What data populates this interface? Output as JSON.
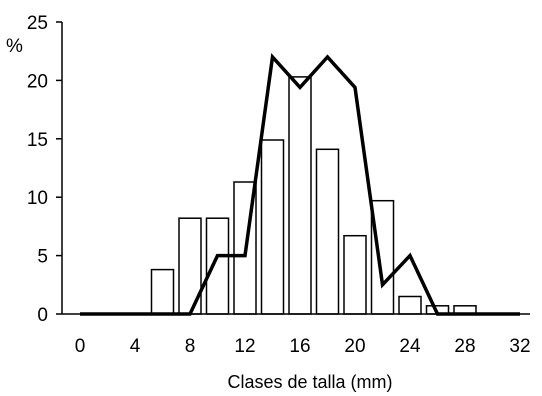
{
  "chart_data": {
    "type": "bar",
    "xlabel": "Clases de talla (mm)",
    "ylabel": "%",
    "xlim": [
      0,
      32
    ],
    "ylim": [
      0,
      25
    ],
    "x_ticks": [
      0,
      4,
      8,
      12,
      16,
      20,
      24,
      28,
      32
    ],
    "y_ticks": [
      0,
      5,
      10,
      15,
      20,
      25
    ],
    "grid": false,
    "legend": "none",
    "bar_width": 1.6,
    "series": [
      {
        "type": "bar",
        "x": [
          6,
          8,
          10,
          12,
          14,
          16,
          18,
          20,
          22,
          24,
          26,
          28
        ],
        "values": [
          3.8,
          8.2,
          8.2,
          11.3,
          14.9,
          20.3,
          14.1,
          6.7,
          9.7,
          1.5,
          0.7,
          0.7
        ],
        "fill": "#ffffff",
        "stroke": "#000000"
      },
      {
        "type": "line",
        "x": [
          0,
          2,
          4,
          6,
          8,
          10,
          12,
          14,
          16,
          18,
          20,
          22,
          24,
          26,
          28,
          30,
          32
        ],
        "values": [
          0,
          0,
          0,
          0,
          0,
          5,
          5,
          22,
          19.4,
          22,
          19.4,
          2.5,
          5,
          0,
          0,
          0,
          0
        ],
        "color": "#000000"
      }
    ]
  }
}
